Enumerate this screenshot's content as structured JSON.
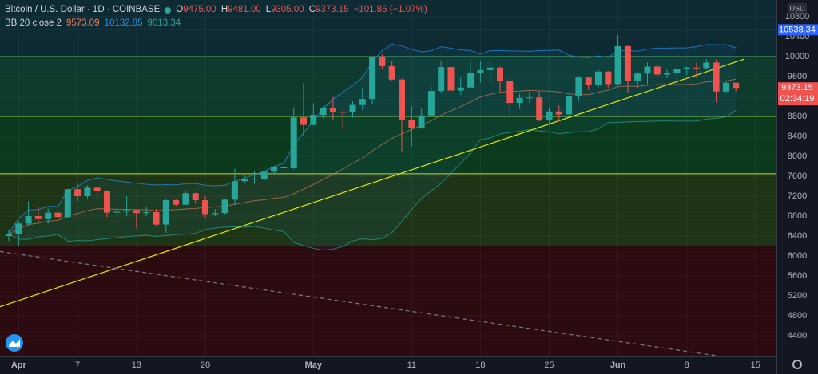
{
  "chart_data": {
    "type": "candlestick",
    "legend": {
      "symbol": "Bitcoin / U.S. Dollar · 1D · COINBASE",
      "fields": [
        {
          "key": "O",
          "value": "9475.00"
        },
        {
          "key": "H",
          "value": "9481.00"
        },
        {
          "key": "L",
          "value": "9305.00"
        },
        {
          "key": "C",
          "value": "9373.15"
        }
      ],
      "change": "−101.85 (−1.07%)"
    },
    "indicator": {
      "name": "BB 20 close 2",
      "values": [
        "9573.09",
        "10132.85",
        "9013.34"
      ],
      "colors": [
        "#f57f5b",
        "#2196f3",
        "#26a69a"
      ]
    },
    "currency": "USD",
    "categories": [
      null,
      "Apr",
      null,
      null,
      null,
      null,
      null,
      "7",
      null,
      null,
      null,
      null,
      null,
      "13",
      null,
      null,
      null,
      null,
      null,
      null,
      "20",
      null,
      null,
      null,
      null,
      null,
      null,
      null,
      null,
      null,
      null,
      "May",
      null,
      null,
      null,
      null,
      null,
      null,
      null,
      null,
      null,
      "11",
      null,
      null,
      null,
      null,
      null,
      null,
      "18",
      null,
      null,
      null,
      null,
      null,
      null,
      "25",
      null,
      null,
      null,
      null,
      null,
      null,
      "Jun",
      null,
      null,
      null,
      null,
      null,
      null,
      "8",
      null,
      null,
      null,
      null,
      null,
      null,
      "15"
    ],
    "open": [
      6400,
      6440,
      6650,
      6800,
      6740,
      6870,
      6780,
      7340,
      7200,
      7370,
      7300,
      6870,
      6890,
      6920,
      6860,
      6880,
      6630,
      7120,
      7030,
      7260,
      7120,
      6840,
      6860,
      7130,
      7500,
      7540,
      7550,
      7690,
      7790,
      7760,
      8780,
      8630,
      8830,
      8970,
      8890,
      8880,
      9030,
      9150,
      9990,
      9810,
      9540,
      8730,
      8570,
      8820,
      9310,
      9790,
      9320,
      9380,
      9680,
      9730,
      9780,
      9510,
      9070,
      9170,
      9180,
      8720,
      8900,
      8840,
      9200,
      9580,
      9430,
      9700,
      9450,
      10210,
      9520,
      9660,
      9800,
      9640,
      9680,
      9760,
      9780,
      9770,
      9880,
      9300,
      9475,
      null,
      null
    ],
    "high": [
      6520,
      6700,
      7100,
      7000,
      6950,
      6900,
      7350,
      7460,
      7420,
      7380,
      7320,
      6950,
      7200,
      6930,
      6980,
      6940,
      7150,
      7150,
      7300,
      7270,
      7200,
      6940,
      7150,
      7750,
      7620,
      7700,
      7710,
      7800,
      7800,
      8980,
      9470,
      9060,
      9000,
      9190,
      8950,
      9100,
      9380,
      10000,
      10050,
      9910,
      9560,
      9000,
      8950,
      9400,
      9920,
      9850,
      9580,
      9880,
      9900,
      9890,
      9800,
      9560,
      9250,
      9300,
      9300,
      8960,
      9020,
      9220,
      9610,
      9600,
      9740,
      9710,
      10430,
      10230,
      9690,
      9880,
      9850,
      9740,
      9800,
      9800,
      9880,
      9950,
      9940,
      9520,
      9481,
      null,
      null
    ],
    "low": [
      6300,
      6200,
      6600,
      6700,
      6650,
      6700,
      6770,
      7100,
      7150,
      7120,
      6780,
      6780,
      6800,
      6550,
      6800,
      6600,
      6470,
      7000,
      7020,
      7050,
      6750,
      6800,
      6840,
      7020,
      7450,
      7450,
      7500,
      7650,
      7700,
      7740,
      8420,
      8620,
      8760,
      8720,
      8550,
      8780,
      8930,
      9050,
      9750,
      9520,
      8100,
      8200,
      8550,
      8800,
      9260,
      9150,
      9230,
      9380,
      9480,
      9470,
      9300,
      8820,
      8950,
      9070,
      8700,
      8650,
      8700,
      8830,
      9110,
      9330,
      9380,
      9380,
      9420,
      9280,
      9380,
      9450,
      9590,
      9560,
      9400,
      9630,
      9570,
      9730,
      9080,
      9280,
      9305,
      null,
      null
    ],
    "close": [
      6440,
      6650,
      6800,
      6740,
      6870,
      6780,
      7340,
      7200,
      7370,
      7300,
      6870,
      6890,
      6920,
      6860,
      6880,
      6630,
      7120,
      7030,
      7260,
      7120,
      6840,
      6860,
      7130,
      7500,
      7540,
      7550,
      7690,
      7790,
      7760,
      8780,
      8630,
      8830,
      8970,
      8890,
      8880,
      9030,
      9150,
      9990,
      9810,
      9540,
      8730,
      8570,
      8820,
      9310,
      9790,
      9320,
      9380,
      9680,
      9730,
      9780,
      9510,
      9070,
      9170,
      9180,
      8720,
      8900,
      8840,
      9200,
      9580,
      9430,
      9700,
      9450,
      10210,
      9520,
      9660,
      9800,
      9640,
      9680,
      9760,
      9780,
      9770,
      9880,
      9300,
      9475,
      9373.15,
      null,
      null
    ],
    "up_color": "#26a69a",
    "down_color": "#ef5350",
    "ylim": [
      3984,
      11136
    ],
    "yticks": [
      4400,
      4800,
      5200,
      5600,
      6000,
      6400,
      6800,
      7200,
      7600,
      8000,
      8400,
      8800,
      9200,
      9600,
      10000,
      10400,
      10800
    ],
    "background": "#0e2a33",
    "levels": [
      {
        "value": 10000,
        "color": "#4caf50",
        "fill": "#0f3a2e"
      },
      {
        "value": 8800,
        "color": "#8bc34a",
        "fill": "#0b3a1c"
      },
      {
        "value": 7650,
        "color": "#cddc39",
        "fill": "#1d3516"
      },
      {
        "value": 6200,
        "color": "#b71c1c",
        "fill": "#2b0a10"
      }
    ],
    "price_line": {
      "value": 10538.34,
      "color": "#2962ff"
    },
    "last_price": 9373.15,
    "countdown": "02:34:19",
    "trendlines": [
      {
        "from": [
          0,
          5040
        ],
        "to": [
          74,
          9893
        ],
        "color": "#e5e500",
        "dashed": false
      },
      {
        "from": [
          0,
          6064
        ],
        "to": [
          72,
          4000
        ],
        "color": "#787b86",
        "dashed": true
      }
    ]
  }
}
